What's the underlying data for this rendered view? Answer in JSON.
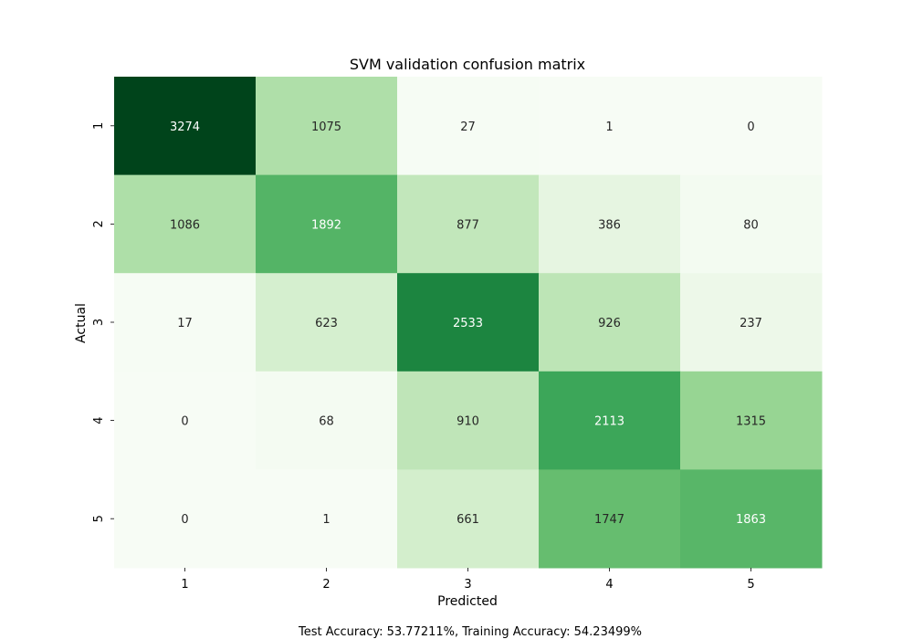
{
  "chart_data": {
    "type": "heatmap",
    "title": "SVM validation confusion matrix",
    "xlabel": "Predicted",
    "ylabel": "Actual",
    "x_categories": [
      "1",
      "2",
      "3",
      "4",
      "5"
    ],
    "y_categories": [
      "1",
      "2",
      "3",
      "4",
      "5"
    ],
    "values": [
      [
        3274,
        1075,
        27,
        1,
        0
      ],
      [
        1086,
        1892,
        877,
        386,
        80
      ],
      [
        17,
        623,
        2533,
        926,
        237
      ],
      [
        0,
        68,
        910,
        2113,
        1315
      ],
      [
        0,
        1,
        661,
        1747,
        1863
      ]
    ],
    "colormap": "Greens",
    "color_range": [
      0,
      3274
    ],
    "colorbar": false
  },
  "footer": {
    "text": "Test Accuracy: 53.77211%, Training Accuracy: 54.23499%"
  }
}
